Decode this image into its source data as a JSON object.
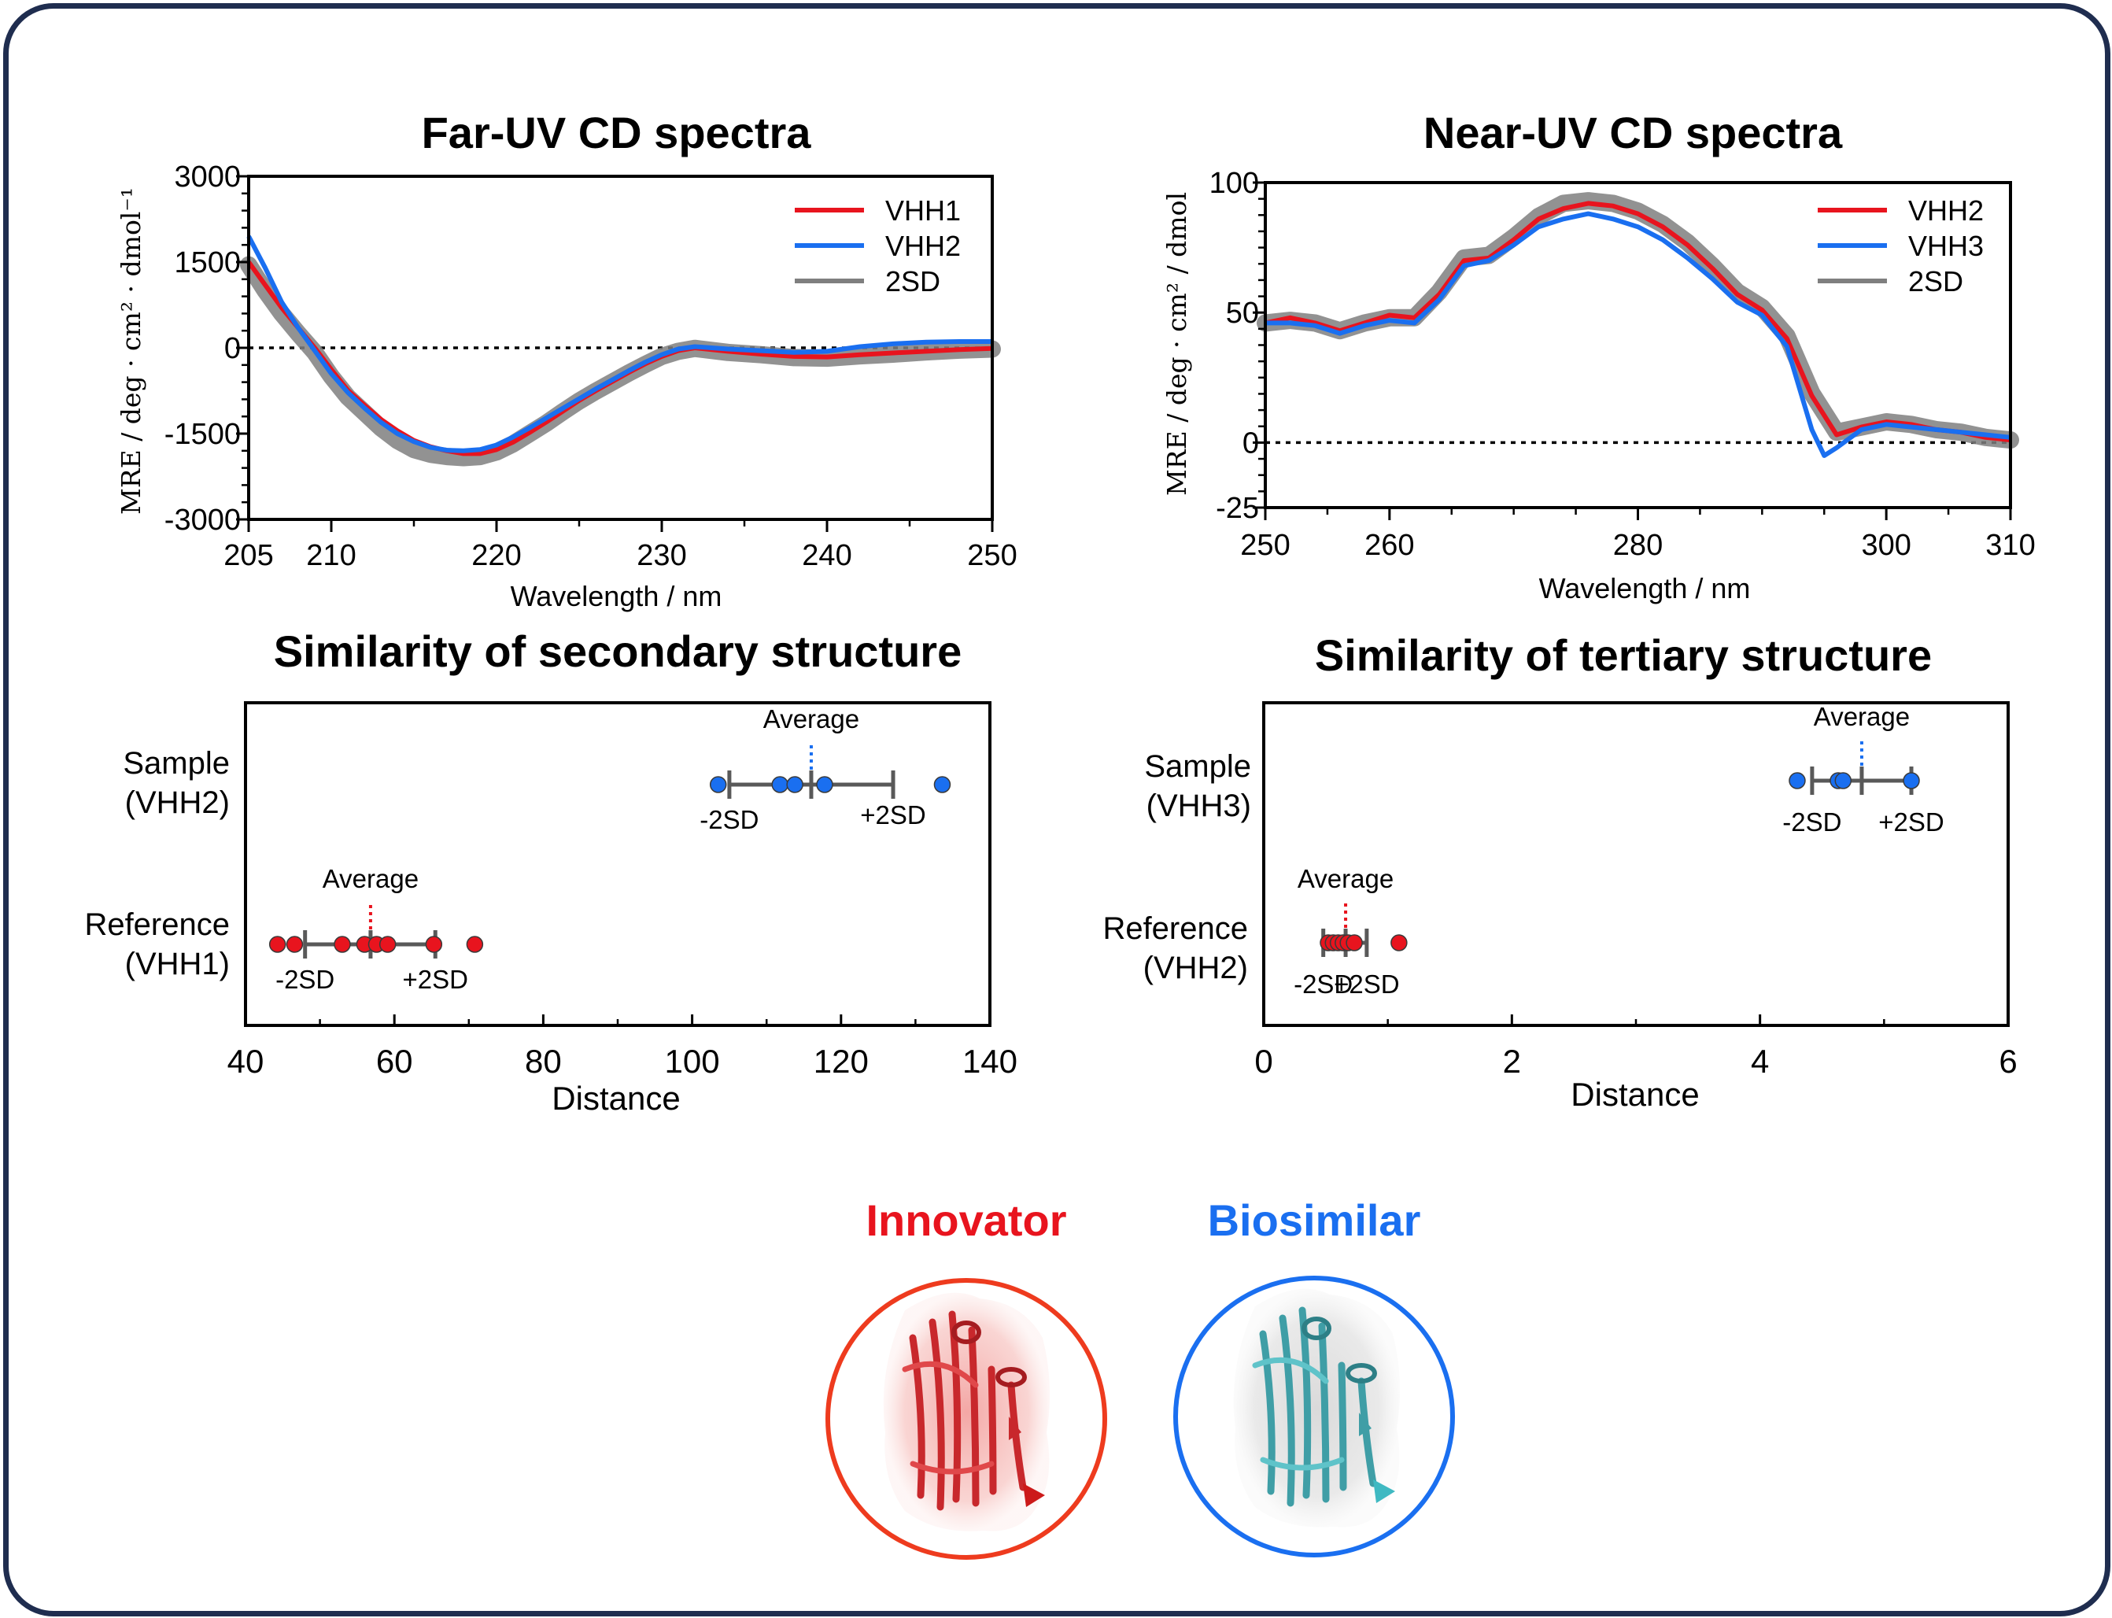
{
  "colors": {
    "red": "#e8141e",
    "blue": "#1a6ff0",
    "gray": "#7f7f7f",
    "frame": "#1f2d4f",
    "innovator_ring": "#ee3b1e",
    "biosimilar_ring": "#1a6ff0"
  },
  "chart_data": [
    {
      "id": "far",
      "type": "line",
      "title": "Far-UV CD spectra",
      "xlabel": "Wavelength / nm",
      "ylabel": "MRE / deg · cm² · dmol⁻¹",
      "xlim": [
        205,
        250
      ],
      "ylim": [
        -3000,
        3000
      ],
      "xticks": [
        205,
        210,
        220,
        230,
        240,
        250
      ],
      "yticks": [
        3000,
        1500,
        0,
        -1500,
        -3000
      ],
      "legend": {
        "position": "top-right",
        "entries": [
          "VHH1",
          "VHH2",
          "2SD"
        ]
      },
      "zero_line": true,
      "series": [
        {
          "name": "VHH1",
          "color": "red",
          "x": [
            205,
            206,
            207,
            208,
            209,
            210,
            211,
            212,
            213,
            214,
            215,
            216,
            217,
            218,
            219,
            220,
            221,
            222,
            223,
            224,
            225,
            226,
            227,
            228,
            229,
            230,
            231,
            232,
            234,
            236,
            238,
            240,
            242,
            244,
            246,
            248,
            250
          ],
          "y": [
            1500,
            1100,
            700,
            350,
            0,
            -380,
            -740,
            -1000,
            -1250,
            -1450,
            -1620,
            -1730,
            -1800,
            -1850,
            -1850,
            -1780,
            -1650,
            -1480,
            -1300,
            -1110,
            -920,
            -750,
            -590,
            -430,
            -280,
            -150,
            -50,
            0,
            -60,
            -110,
            -150,
            -160,
            -120,
            -90,
            -60,
            -30,
            -10
          ]
        },
        {
          "name": "VHH2",
          "color": "blue",
          "x": [
            205,
            206,
            207,
            208,
            209,
            210,
            211,
            212,
            213,
            214,
            215,
            216,
            217,
            218,
            219,
            220,
            221,
            222,
            223,
            224,
            225,
            226,
            227,
            228,
            229,
            230,
            231,
            232,
            234,
            236,
            238,
            240,
            242,
            244,
            246,
            248,
            250
          ],
          "y": [
            1950,
            1400,
            800,
            350,
            -50,
            -450,
            -780,
            -1050,
            -1300,
            -1500,
            -1640,
            -1740,
            -1790,
            -1800,
            -1780,
            -1700,
            -1560,
            -1400,
            -1230,
            -1060,
            -890,
            -720,
            -560,
            -400,
            -250,
            -120,
            -20,
            20,
            -20,
            -50,
            -80,
            -60,
            20,
            70,
            100,
            110,
            110
          ]
        },
        {
          "name": "2SD",
          "color": "gray",
          "x": [
            205,
            206,
            207,
            208,
            209,
            210,
            211,
            212,
            213,
            214,
            215,
            216,
            217,
            218,
            219,
            220,
            221,
            222,
            223,
            224,
            225,
            226,
            227,
            228,
            229,
            230,
            231,
            232,
            234,
            236,
            238,
            240,
            242,
            244,
            246,
            248,
            250
          ],
          "y": [
            1450,
            1000,
            600,
            250,
            -80,
            -500,
            -860,
            -1130,
            -1400,
            -1620,
            -1780,
            -1860,
            -1900,
            -1920,
            -1900,
            -1820,
            -1680,
            -1500,
            -1320,
            -1120,
            -930,
            -760,
            -600,
            -440,
            -290,
            -150,
            -60,
            -10,
            -80,
            -120,
            -170,
            -180,
            -140,
            -110,
            -70,
            -40,
            -20
          ]
        }
      ]
    },
    {
      "id": "near",
      "type": "line",
      "title": "Near-UV CD spectra",
      "xlabel": "Wavelength / nm",
      "ylabel": "MRE / deg · cm² / dmol",
      "xlim": [
        250,
        310
      ],
      "ylim": [
        -25,
        100
      ],
      "xticks": [
        250,
        260,
        280,
        300,
        310
      ],
      "yticks": [
        100,
        50,
        0,
        -25
      ],
      "legend": {
        "position": "top-right",
        "entries": [
          "VHH2",
          "VHH3",
          "2SD"
        ]
      },
      "zero_line": true,
      "series": [
        {
          "name": "VHH2",
          "color": "red",
          "x": [
            250,
            252,
            254,
            256,
            258,
            260,
            262,
            264,
            266,
            268,
            270,
            272,
            274,
            276,
            278,
            280,
            282,
            284,
            286,
            288,
            290,
            292,
            294,
            296,
            298,
            300,
            302,
            304,
            306,
            308,
            310
          ],
          "y": [
            46,
            48,
            46,
            43,
            46,
            49,
            48,
            57,
            70,
            71,
            78,
            86,
            90,
            92,
            91,
            88,
            83,
            76,
            67,
            57,
            51,
            40,
            18,
            3,
            6,
            8,
            7,
            5,
            4,
            2,
            1
          ]
        },
        {
          "name": "VHH3",
          "color": "blue",
          "x": [
            250,
            252,
            254,
            256,
            258,
            260,
            262,
            264,
            266,
            268,
            270,
            272,
            274,
            276,
            278,
            280,
            282,
            284,
            286,
            288,
            290,
            292,
            294,
            295,
            296,
            298,
            300,
            302,
            304,
            306,
            308,
            310
          ],
          "y": [
            46,
            46,
            45,
            42,
            45,
            47,
            46,
            55,
            68,
            70,
            76,
            83,
            86,
            88,
            86,
            83,
            78,
            71,
            63,
            54,
            49,
            37,
            5,
            -5,
            -2,
            5,
            7,
            6,
            5,
            4,
            3,
            2
          ]
        },
        {
          "name": "2SD",
          "color": "gray",
          "x": [
            250,
            252,
            254,
            256,
            258,
            260,
            262,
            264,
            266,
            268,
            270,
            272,
            274,
            276,
            278,
            280,
            282,
            284,
            286,
            288,
            290,
            292,
            294,
            296,
            298,
            300,
            302,
            304,
            306,
            308,
            310
          ],
          "y": [
            46,
            47,
            46,
            43,
            46,
            48,
            48,
            58,
            71,
            72,
            79,
            87,
            92,
            93,
            92,
            89,
            84,
            77,
            68,
            58,
            52,
            41,
            19,
            4,
            6,
            8,
            7,
            5,
            4,
            2,
            1
          ]
        }
      ]
    },
    {
      "id": "sec",
      "type": "scatter",
      "title": "Similarity of secondary structure",
      "xlabel": "Distance",
      "xlim": [
        40,
        140
      ],
      "xticks": [
        40,
        60,
        80,
        100,
        120,
        140
      ],
      "rows": [
        {
          "label_line1": "Sample",
          "label_line2": "(VHH2)",
          "color": "blue",
          "points": [
            103.5,
            111.8,
            113.8,
            117.8,
            133.6
          ],
          "mean": 116,
          "minus2sd": 105,
          "plus2sd": 127,
          "avg_label": "Average",
          "minus_label": "-2SD",
          "plus_label": "+2SD"
        },
        {
          "label_line1": "Reference",
          "label_line2": "(VHH1)",
          "color": "red",
          "points": [
            44.3,
            46.6,
            53,
            56,
            57.6,
            59.1,
            65.3,
            70.8
          ],
          "mean": 56.8,
          "minus2sd": 48,
          "plus2sd": 65.5,
          "avg_label": "Average",
          "minus_label": "-2SD",
          "plus_label": "+2SD"
        }
      ]
    },
    {
      "id": "ter",
      "type": "scatter",
      "title": "Similarity of tertiary structure",
      "xlabel": "Distance",
      "xlim": [
        0,
        6
      ],
      "xticks": [
        0,
        2,
        4,
        6
      ],
      "rows": [
        {
          "label_line1": "Sample",
          "label_line2": "(VHH3)",
          "color": "blue",
          "points": [
            4.3,
            4.63,
            4.67,
            5.22
          ],
          "mean": 4.82,
          "minus2sd": 4.42,
          "plus2sd": 5.22,
          "avg_label": "Average",
          "minus_label": "-2SD",
          "plus_label": "+2SD"
        },
        {
          "label_line1": "Reference",
          "label_line2": "(VHH2)",
          "color": "red",
          "points": [
            0.52,
            0.56,
            0.6,
            0.64,
            0.68,
            0.73,
            1.09
          ],
          "mean": 0.66,
          "minus2sd": 0.48,
          "plus2sd": 0.83,
          "avg_label": "Average",
          "minus_label": "-2SD",
          "plus_label": "+2SD"
        }
      ]
    }
  ],
  "bottom": {
    "innovator_label": "Innovator",
    "biosimilar_label": "Biosimilar",
    "innovator_image": "innovator-protein-structure",
    "biosimilar_image": "biosimilar-protein-structure"
  }
}
